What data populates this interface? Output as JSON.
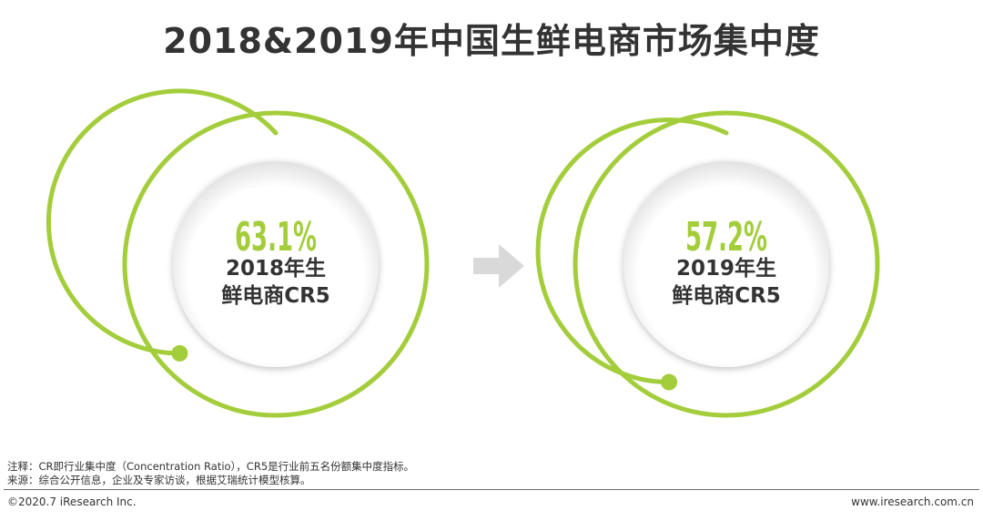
{
  "title": "2018&2019年中国生鲜电商市场集中度",
  "colors": {
    "accent": "#a3cd3b",
    "text": "#333333",
    "arrow": "#d9d9d9",
    "circle_fill": "#eeeeee"
  },
  "chart_data": {
    "type": "gauge",
    "unit": "%",
    "items": [
      {
        "year": "2018",
        "value": 63.1,
        "value_label": "63.1%",
        "label_line1": "2018年生",
        "label_line2": "鲜电商CR5"
      },
      {
        "year": "2019",
        "value": 57.2,
        "value_label": "57.2%",
        "label_line1": "2019年生",
        "label_line2": "鲜电商CR5"
      }
    ]
  },
  "connector_icon": "right-arrow-icon",
  "notes": {
    "note": "注释：CR即行业集中度（Concentration Ratio），CR5是行业前五名份额集中度指标。",
    "source": "来源：综合公开信息，企业及专家访谈，根据艾瑞统计模型核算。"
  },
  "footer": {
    "copyright": "©2020.7 iResearch Inc.",
    "website": "www.iresearch.com.cn"
  }
}
